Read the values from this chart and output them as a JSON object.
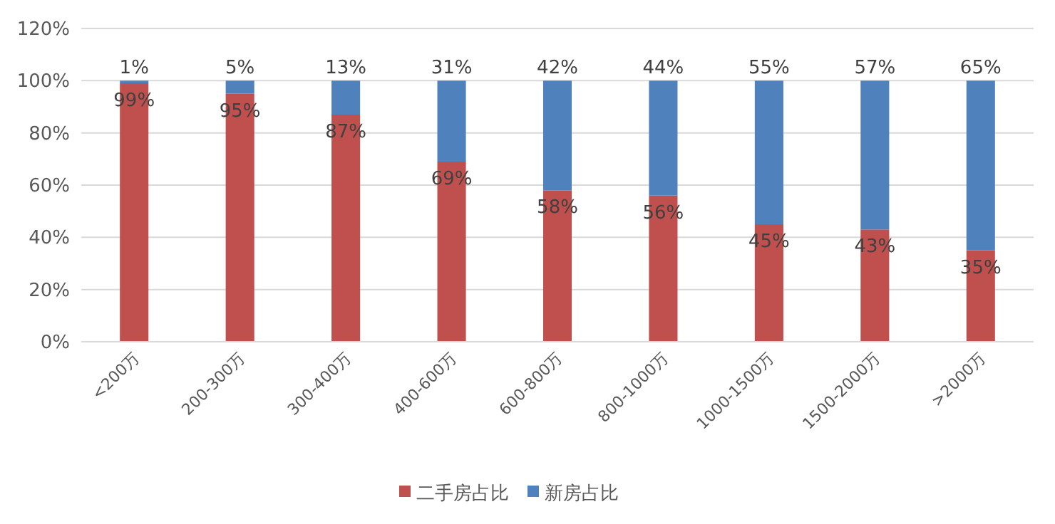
{
  "chart_data": {
    "type": "bar",
    "stacked": true,
    "categories": [
      "<200万",
      "200-300万",
      "300-400万",
      "400-600万",
      "600-800万",
      "800-1000万",
      "1000-1500万",
      "1500-2000万",
      ">2000万"
    ],
    "series": [
      {
        "name": "二手房占比",
        "color": "#c0504d",
        "values": [
          99,
          95,
          87,
          69,
          58,
          56,
          45,
          43,
          35
        ],
        "value_labels": [
          "99%",
          "95%",
          "87%",
          "69%",
          "58%",
          "56%",
          "45%",
          "43%",
          "35%"
        ]
      },
      {
        "name": "新房占比",
        "color": "#4f81bd",
        "values": [
          1,
          5,
          13,
          31,
          42,
          44,
          55,
          57,
          65
        ],
        "value_labels": [
          "1%",
          "5%",
          "13%",
          "31%",
          "42%",
          "44%",
          "55%",
          "57%",
          "65%"
        ]
      }
    ],
    "ylim": [
      0,
      120
    ],
    "yticks": [
      {
        "value": 0,
        "label": "0%"
      },
      {
        "value": 20,
        "label": "20%"
      },
      {
        "value": 40,
        "label": "40%"
      },
      {
        "value": 60,
        "label": "60%"
      },
      {
        "value": 80,
        "label": "80%"
      },
      {
        "value": 100,
        "label": "100%"
      },
      {
        "value": 120,
        "label": "120%"
      }
    ],
    "grid": "y",
    "legend": "bottom"
  }
}
